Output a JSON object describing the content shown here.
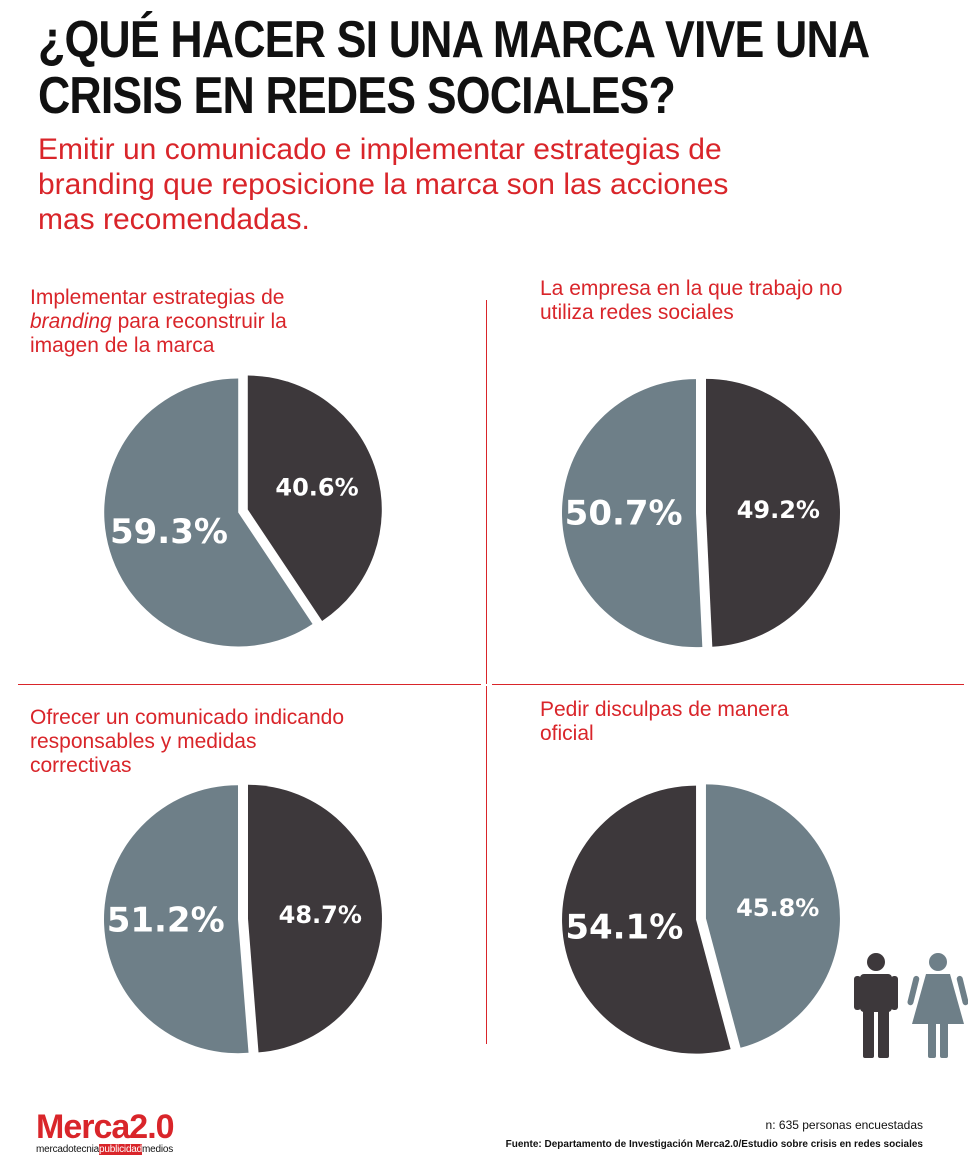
{
  "header": {
    "title_lines": [
      "¿QUÉ HACER SI UNA  MARCA VIVE UNA",
      "CRISIS EN REDES SOCIALES?"
    ],
    "subtitle_lines": [
      "Emitir un comunicado e implementar estrategias de",
      "branding que reposicione la marca son las acciones",
      "mas recomendadas."
    ]
  },
  "colors": {
    "accent": "#d9252a",
    "dark_slice": "#3d383b",
    "light_slice": "#6e7f88",
    "text": "#111111"
  },
  "chart_data": [
    {
      "type": "pie",
      "title_lines": [
        "Implementar estrategias de",
        "branding para reconstruir la",
        "imagen de la marca"
      ],
      "title_italic_word": "branding",
      "slices": [
        {
          "value": 40.6,
          "label": "40.6%",
          "color": "#3d383b"
        },
        {
          "value": 59.3,
          "label": "59.3%",
          "color": "#6e7f88"
        }
      ]
    },
    {
      "type": "pie",
      "title_lines": [
        "La empresa en la que trabajo no",
        "utiliza redes sociales"
      ],
      "slices": [
        {
          "value": 49.2,
          "label": "49.2%",
          "color": "#3d383b"
        },
        {
          "value": 50.7,
          "label": "50.7%",
          "color": "#6e7f88"
        }
      ]
    },
    {
      "type": "pie",
      "title_lines": [
        "Ofrecer un comunicado indicando",
        "responsables y medidas",
        "correctivas"
      ],
      "slices": [
        {
          "value": 48.7,
          "label": "48.7%",
          "color": "#3d383b"
        },
        {
          "value": 51.2,
          "label": "51.2%",
          "color": "#6e7f88"
        }
      ]
    },
    {
      "type": "pie",
      "title_lines": [
        "Pedir disculpas de manera",
        "oficial"
      ],
      "slices": [
        {
          "value": 45.8,
          "label": "45.8%",
          "color": "#6e7f88"
        },
        {
          "value": 54.1,
          "label": "54.1%",
          "color": "#3d383b"
        }
      ]
    }
  ],
  "legend_icons": [
    {
      "icon": "man-icon",
      "color": "#3d383b"
    },
    {
      "icon": "woman-icon",
      "color": "#6e7f88"
    }
  ],
  "footer": {
    "logo_main": "Merca2.0",
    "logo_tag_parts": [
      "mercadotecnia",
      "publicidad",
      "medios"
    ],
    "sample": "n: 635 personas encuestadas",
    "source": "Fuente: Departamento de Investigación Merca2.0/Estudio sobre crisis en redes sociales"
  }
}
